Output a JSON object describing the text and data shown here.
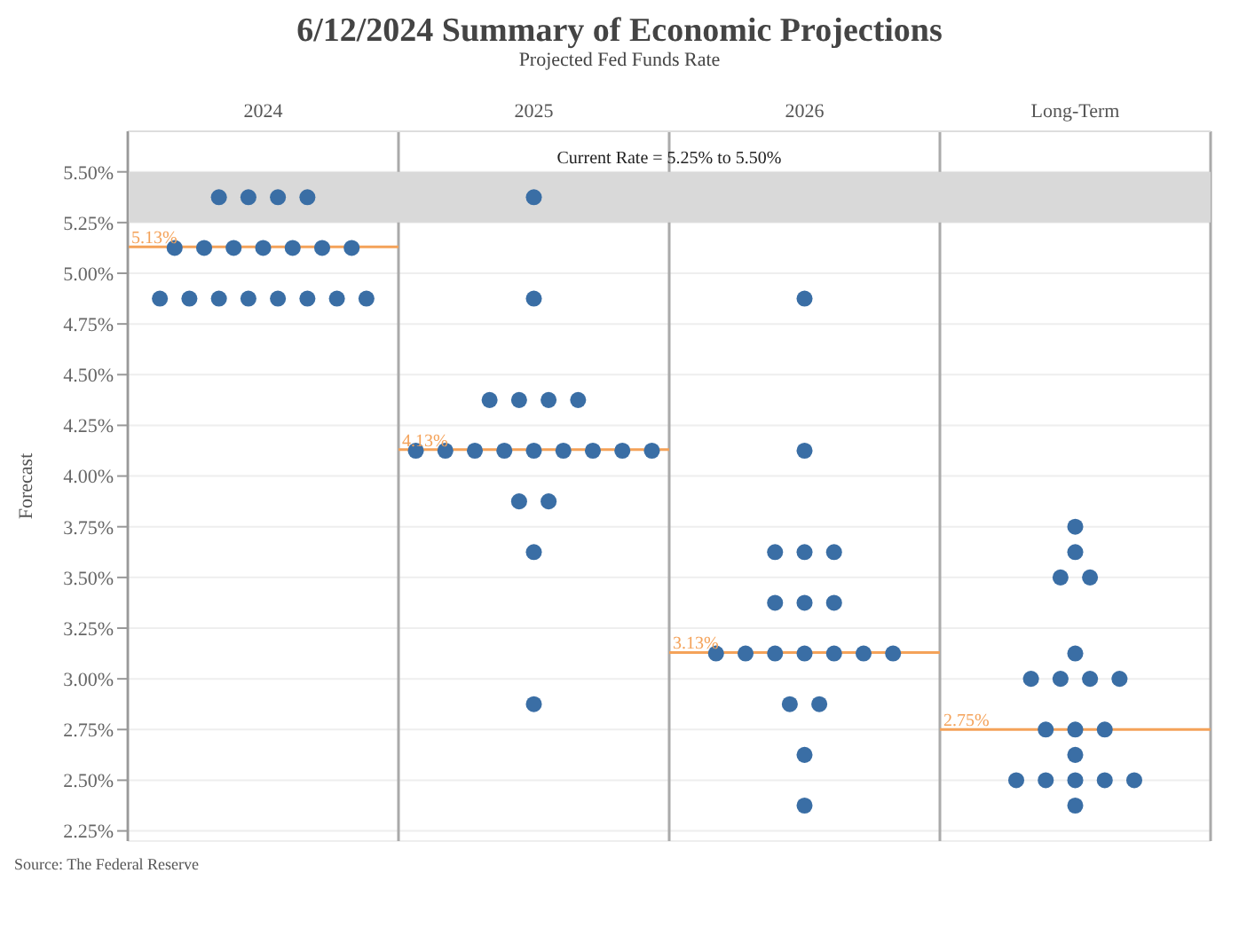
{
  "chart_data": {
    "type": "scatter",
    "title": "6/12/2024 Summary of Economic Projections",
    "subtitle": "Projected Fed Funds Rate",
    "ylabel": "Forecast",
    "categories": [
      "2024",
      "2025",
      "2026",
      "Long-Term"
    ],
    "series": [
      {
        "color": "#3a6ea5",
        "values": [
          5.375,
          5.375,
          4.875,
          3.75
        ]
      },
      {
        "color": "#3a6ea5",
        "values": [
          5.375,
          4.875,
          4.125,
          3.625
        ]
      },
      {
        "color": "#3a6ea5",
        "values": [
          5.375,
          4.375,
          3.625,
          3.5
        ]
      },
      {
        "color": "#3a6ea5",
        "values": [
          5.375,
          4.375,
          3.625,
          3.5
        ]
      },
      {
        "color": "#3a6ea5",
        "values": [
          5.125,
          4.375,
          3.625,
          3.125
        ]
      },
      {
        "color": "#3a6ea5",
        "values": [
          5.125,
          4.375,
          3.375,
          3.0
        ]
      },
      {
        "color": "#3a6ea5",
        "values": [
          5.125,
          4.125,
          3.375,
          3.0
        ]
      },
      {
        "color": "#3a6ea5",
        "values": [
          5.125,
          4.125,
          3.375,
          3.0
        ]
      },
      {
        "color": "#3a6ea5",
        "values": [
          5.125,
          4.125,
          3.125,
          3.0
        ]
      },
      {
        "color": "#3a6ea5",
        "values": [
          5.125,
          4.125,
          3.125,
          2.75
        ]
      },
      {
        "color": "#3a6ea5",
        "values": [
          5.125,
          4.125,
          3.125,
          2.75
        ]
      },
      {
        "color": "#3a6ea5",
        "values": [
          4.875,
          4.125,
          3.125,
          2.75
        ]
      },
      {
        "color": "#3a6ea5",
        "values": [
          4.875,
          4.125,
          3.125,
          2.625
        ]
      },
      {
        "color": "#3a6ea5",
        "values": [
          4.875,
          4.125,
          3.125,
          2.5
        ]
      },
      {
        "color": "#3a6ea5",
        "values": [
          4.875,
          4.125,
          3.125,
          2.5
        ]
      },
      {
        "color": "#3a6ea5",
        "values": [
          4.875,
          3.875,
          2.875,
          2.5
        ]
      },
      {
        "color": "#3a6ea5",
        "values": [
          4.875,
          3.875,
          2.875,
          2.5
        ]
      },
      {
        "color": "#3a6ea5",
        "values": [
          4.875,
          3.625,
          2.625,
          2.5
        ]
      },
      {
        "color": "#3a6ea5",
        "values": [
          4.875,
          2.875,
          2.375,
          2.375
        ]
      }
    ],
    "ylim": [
      2.2,
      5.7
    ],
    "yticks": [
      {
        "value": 2.25,
        "label": "2.25%"
      },
      {
        "value": 2.5,
        "label": "2.50%"
      },
      {
        "value": 2.75,
        "label": "2.75%"
      },
      {
        "value": 3.0,
        "label": "3.00%"
      },
      {
        "value": 3.25,
        "label": "3.25%"
      },
      {
        "value": 3.5,
        "label": "3.50%"
      },
      {
        "value": 3.75,
        "label": "3.75%"
      },
      {
        "value": 4.0,
        "label": "4.00%"
      },
      {
        "value": 4.25,
        "label": "4.25%"
      },
      {
        "value": 4.5,
        "label": "4.50%"
      },
      {
        "value": 4.75,
        "label": "4.75%"
      },
      {
        "value": 5.0,
        "label": "5.00%"
      },
      {
        "value": 5.25,
        "label": "5.25%"
      },
      {
        "value": 5.5,
        "label": "5.50%"
      }
    ],
    "ref_lines": [
      {
        "axis": "y",
        "value": 5.13,
        "label": "5.13%",
        "color": "#f4a259"
      },
      {
        "axis": "y",
        "value": 4.13,
        "label": "4.13%",
        "color": "#f4a259"
      },
      {
        "axis": "y",
        "value": 3.13,
        "label": "3.13%",
        "color": "#f4a259"
      },
      {
        "axis": "y",
        "value": 2.75,
        "label": "2.75%",
        "color": "#f4a259"
      }
    ],
    "bands": [
      {
        "axis": "y",
        "from": 5.25,
        "to": 5.5,
        "label": "Current Rate = 5.25% to 5.50%",
        "color": "#d9d9d9"
      }
    ],
    "annotations": [
      "Source: The Federal Reserve"
    ],
    "grid": "y",
    "legend": false,
    "marker": "circle"
  }
}
